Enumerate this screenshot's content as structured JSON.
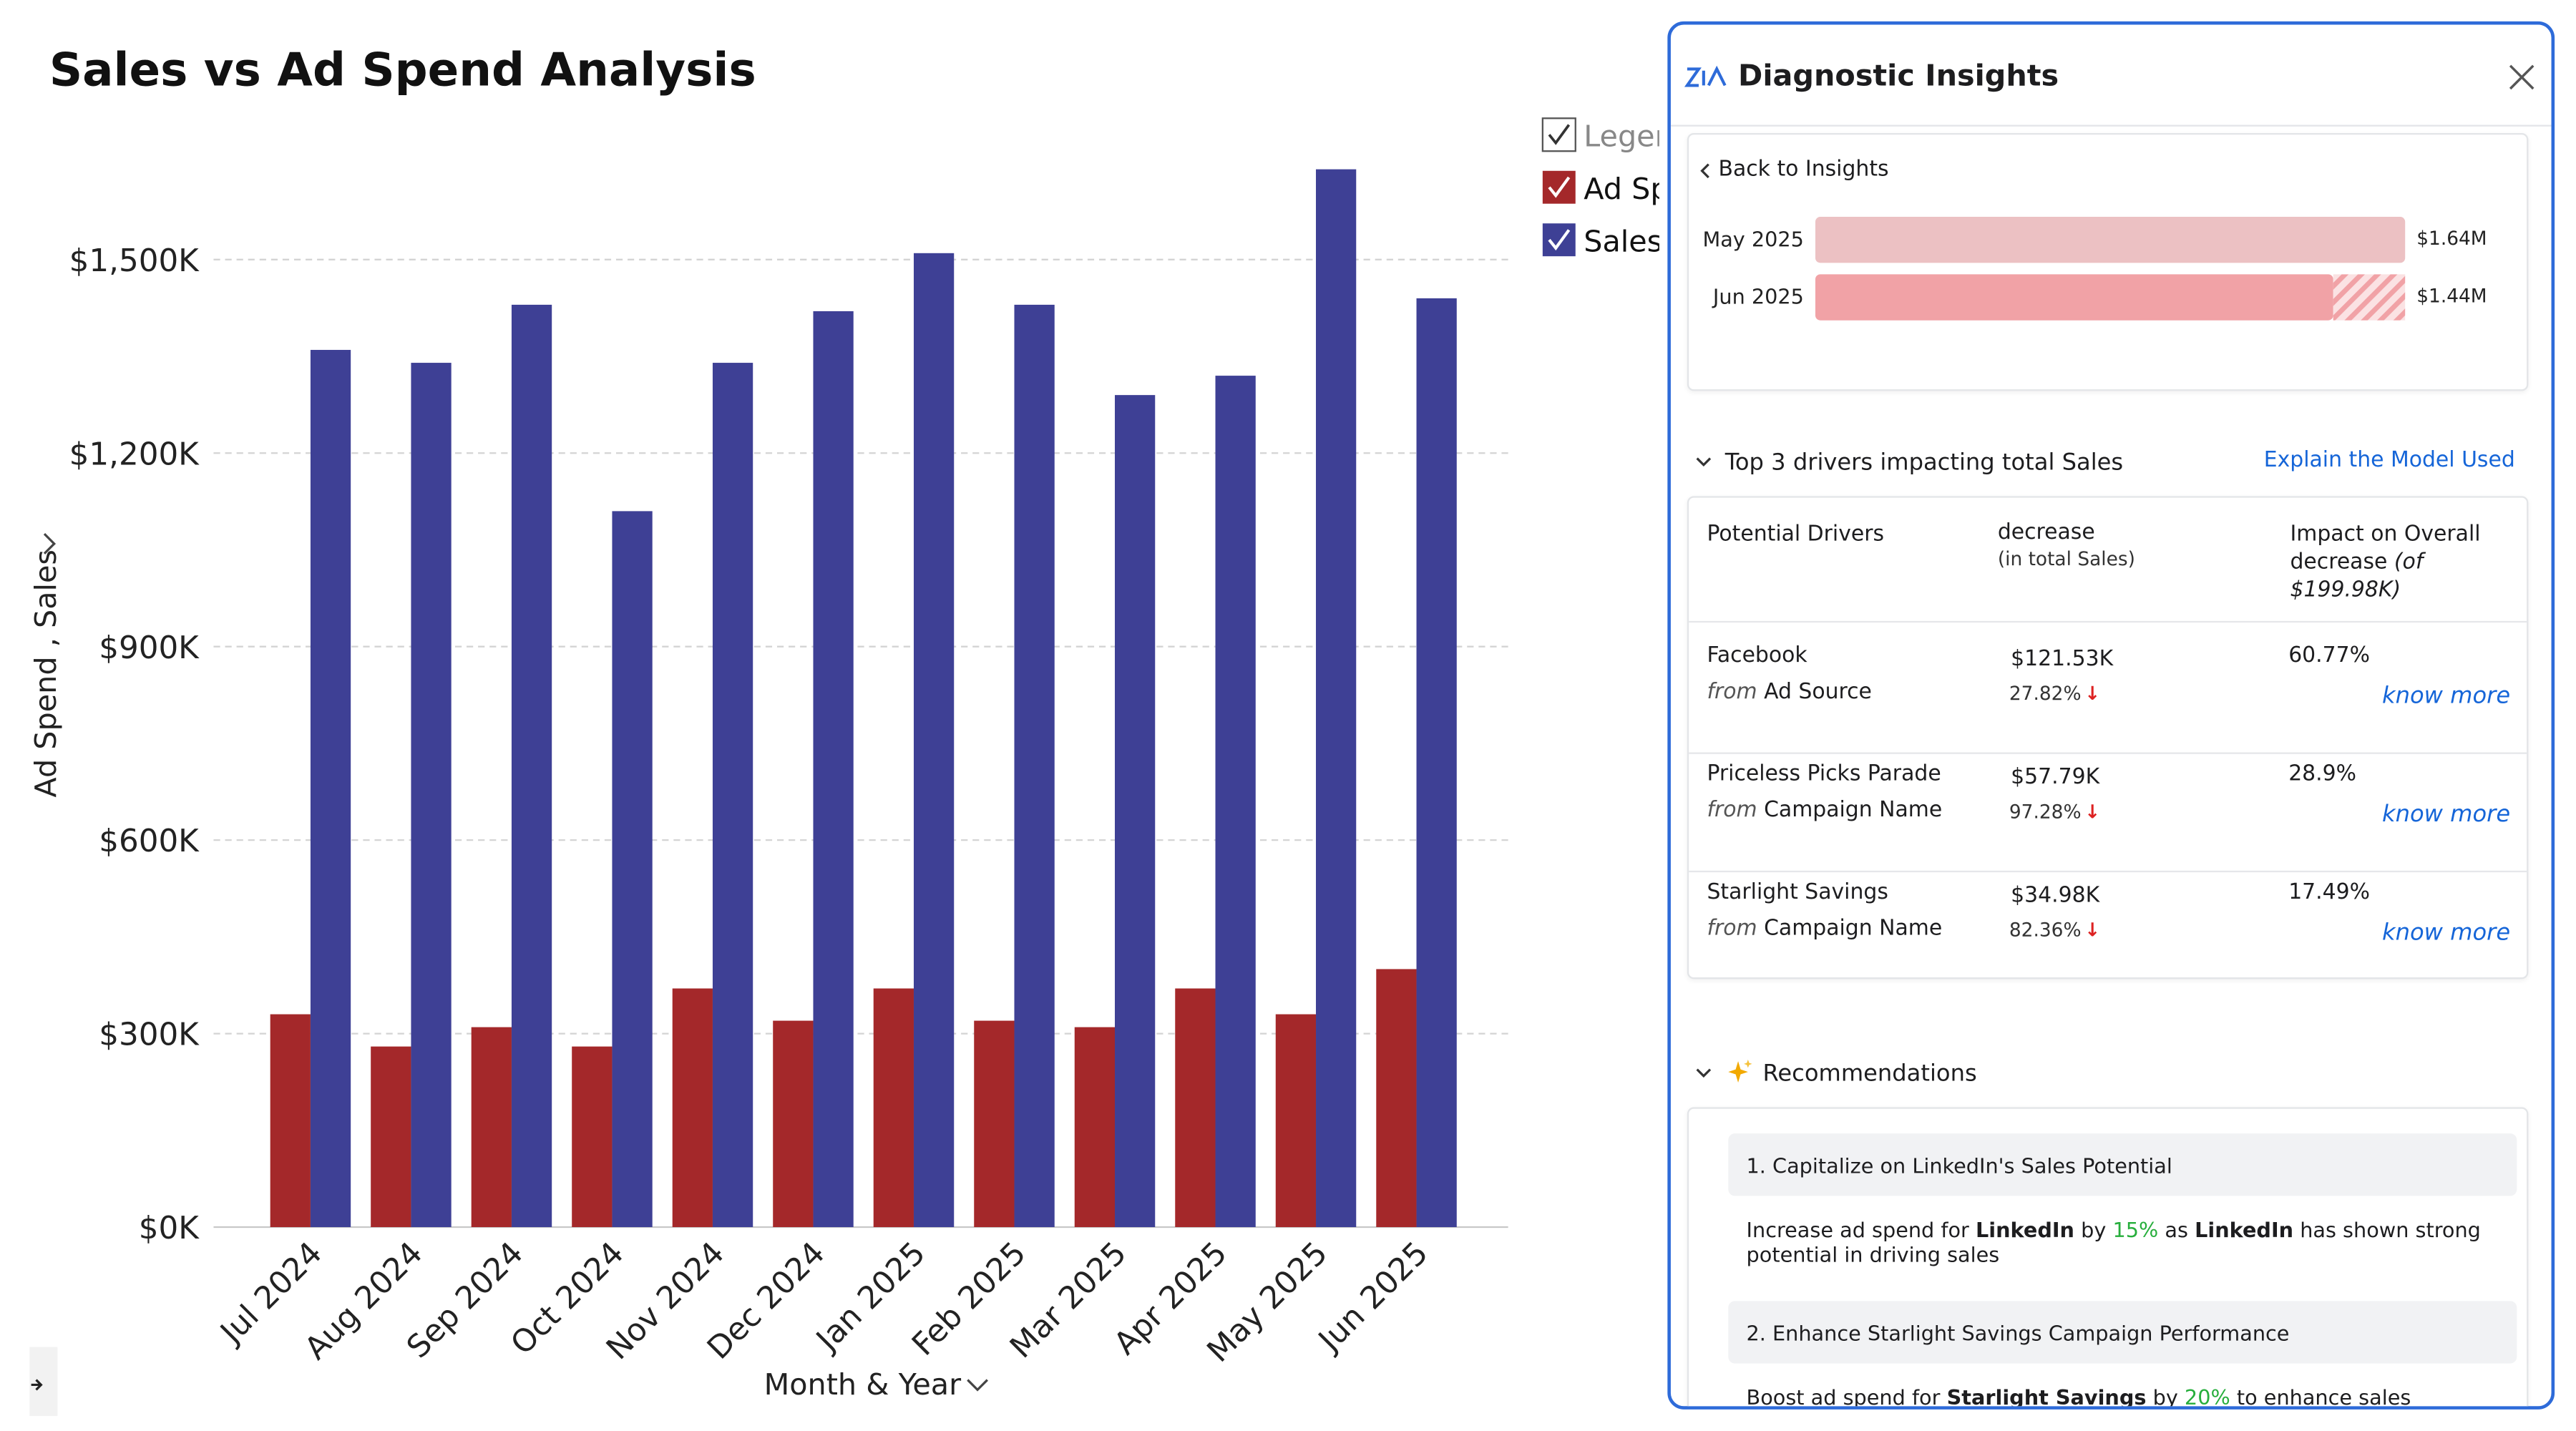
{
  "chart_data": {
    "type": "bar",
    "title": "Sales vs Ad Spend Analysis",
    "y_label": "Ad Spend , Sales",
    "x_label": "Month & Year",
    "legend_title": "Legend",
    "categories": [
      "Jul 2024",
      "Aug 2024",
      "Sep 2024",
      "Oct 2024",
      "Nov 2024",
      "Dec 2024",
      "Jan 2025",
      "Feb 2025",
      "Mar 2025",
      "Apr 2025",
      "May 2025",
      "Jun 2025"
    ],
    "series": [
      {
        "name": "Ad Spend",
        "color": "#a4282a",
        "values": [
          330000,
          280000,
          310000,
          280000,
          370000,
          320000,
          370000,
          320000,
          310000,
          370000,
          330000,
          400000
        ]
      },
      {
        "name": "Sales",
        "color": "#3e4095",
        "values": [
          1360000,
          1340000,
          1430000,
          1110000,
          1340000,
          1420000,
          1510000,
          1430000,
          1290000,
          1320000,
          1640000,
          1440000
        ]
      }
    ],
    "ylim": [
      0,
      1700000
    ],
    "yticks": [
      {
        "value": 0,
        "label": "$0K"
      },
      {
        "value": 300000,
        "label": "$300K"
      },
      {
        "value": 600000,
        "label": "$600K"
      },
      {
        "value": 900000,
        "label": "$900K"
      },
      {
        "value": 1200000,
        "label": "$1,200K"
      },
      {
        "value": 1500000,
        "label": "$1,500K"
      }
    ],
    "grid": true
  },
  "panel": {
    "title": "Diagnostic Insights",
    "back": "Back to Insights",
    "comparison": [
      {
        "label": "May 2025",
        "value": 1640000,
        "value_label": "$1.64M",
        "color": "#ecc1c3"
      },
      {
        "label": "Jun 2025",
        "value": 1440000,
        "value_label": "$1.44M",
        "color": "#f1a2a6"
      }
    ],
    "drivers": {
      "heading": "Top 3 drivers impacting total Sales",
      "link": "Explain the Model Used",
      "header": {
        "driver": "Potential Drivers",
        "change": "decrease",
        "change_note": "(in total Sales)",
        "impact": "Impact on Overall decrease",
        "impact_note": "(of $199.98K)"
      },
      "rows": [
        {
          "name": "Facebook",
          "from": "from",
          "source": "Ad Source",
          "amount": "$121.53K",
          "percent": "27.82%",
          "impact": "60.77%",
          "link": "know more"
        },
        {
          "name": "Priceless Picks Parade",
          "from": "from",
          "source": "Campaign Name",
          "amount": "$57.79K",
          "percent": "97.28%",
          "impact": "28.9%",
          "link": "know more"
        },
        {
          "name": "Starlight Savings",
          "from": "from",
          "source": "Campaign Name",
          "amount": "$34.98K",
          "percent": "82.36%",
          "impact": "17.49%",
          "link": "know more"
        }
      ]
    },
    "recommendations": {
      "heading": "Recommendations",
      "items": [
        {
          "title": "1. Capitalize on LinkedIn's Sales Potential",
          "body": [
            {
              "text": "Increase ad spend for "
            },
            {
              "text": "LinkedIn",
              "style": "bold"
            },
            {
              "text": " by "
            },
            {
              "text": "15%",
              "style": "green"
            },
            {
              "text": " as "
            },
            {
              "text": "LinkedIn",
              "style": "bold"
            },
            {
              "text": " has shown strong potential in driving sales"
            }
          ]
        },
        {
          "title": "2. Enhance Starlight Savings Campaign Performance",
          "body": [
            {
              "text": "Boost ad spend for "
            },
            {
              "text": "Starlight Savings",
              "style": "bold"
            },
            {
              "text": " by "
            },
            {
              "text": "20%",
              "style": "green"
            },
            {
              "text": " to enhance sales performance."
            }
          ]
        }
      ]
    }
  }
}
